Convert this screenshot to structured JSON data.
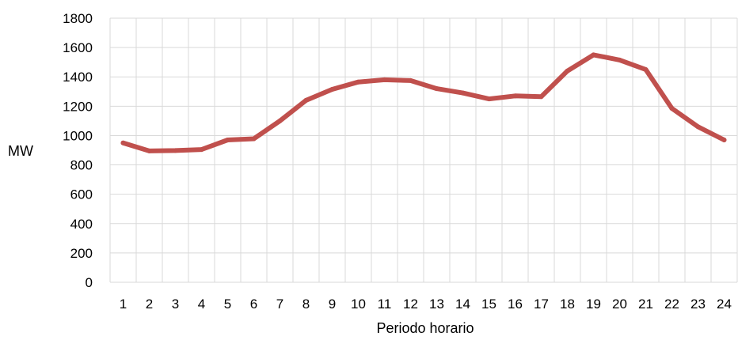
{
  "chart_data": {
    "type": "line",
    "title": "",
    "xlabel": "Periodo horario",
    "ylabel": "MW",
    "x": [
      "1",
      "2",
      "3",
      "4",
      "5",
      "6",
      "7",
      "8",
      "9",
      "10",
      "11",
      "12",
      "13",
      "14",
      "15",
      "16",
      "17",
      "18",
      "19",
      "20",
      "21",
      "22",
      "23",
      "24"
    ],
    "series": [
      {
        "values": [
          950,
          895,
          898,
          905,
          970,
          978,
          1100,
          1240,
          1315,
          1365,
          1380,
          1375,
          1320,
          1290,
          1250,
          1270,
          1265,
          1440,
          1550,
          1515,
          1450,
          1185,
          1060,
          970
        ]
      }
    ],
    "y_ticks": [
      "0",
      "200",
      "400",
      "600",
      "800",
      "1000",
      "1200",
      "1400",
      "1600",
      "1800"
    ],
    "ylim": [
      0,
      1800
    ],
    "grid": true,
    "legend": "none",
    "line_color": "#c0504d"
  }
}
